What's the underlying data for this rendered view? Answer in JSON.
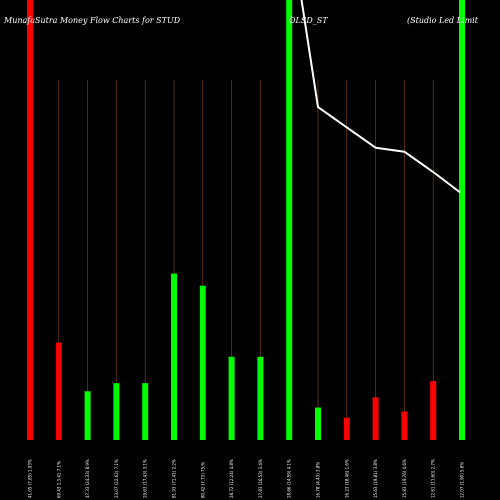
{
  "chart_data": {
    "type": "bar",
    "title_left": "MunafaSutra  Money Flow  Charts for STUD",
    "title_mid": "OLSD_ST",
    "title_right": "(Studio  Led Limit",
    "colors": {
      "up": "#00ff00",
      "down": "#ff0000",
      "background": "#000000",
      "line": "#ffffff",
      "guide": "#8a4a10"
    },
    "ylim": [
      0,
      100
    ],
    "bars": [
      {
        "label": "41.05 (7.85) 1.93%",
        "value": 100,
        "color": "down"
      },
      {
        "label": "69.43 1.3.41.7.1%",
        "value": 24,
        "color": "down"
      },
      {
        "label": "47.33 (24.33) 8.9%",
        "value": 12,
        "color": "up"
      },
      {
        "label": "23.07 (22.62) 7.1%",
        "value": 14,
        "color": "up"
      },
      {
        "label": "29.63 (17.43) 3.1%",
        "value": 14,
        "color": "up"
      },
      {
        "label": "81.93 (71.41) 2.2%",
        "value": 41,
        "color": "up"
      },
      {
        "label": "80.42 (7.73) 75.%",
        "value": 38,
        "color": "up"
      },
      {
        "label": "28.72 (12.24) 4.8%",
        "value": 20.5,
        "color": "up"
      },
      {
        "label": "27.83 (16.53) 3.4%",
        "value": 20.5,
        "color": "up"
      },
      {
        "label": "28.66 (14.59) 4.1%",
        "value": 100,
        "color": "up"
      },
      {
        "label": "16.78 (4.43) 3.8%",
        "value": 8,
        "color": "up"
      },
      {
        "label": "16.23 (18.46) 1.6%",
        "value": 5.5,
        "color": "down"
      },
      {
        "label": "15.63 (19.81) 3.8%",
        "value": 10.5,
        "color": "down"
      },
      {
        "label": "15.83 (19.76) 4.6%",
        "value": 7,
        "color": "down"
      },
      {
        "label": "12.61 (11.60) 2.7%",
        "value": 14.5,
        "color": "down"
      },
      {
        "label": "12.07 (1.90) 5.6%",
        "value": 100,
        "color": "up"
      }
    ],
    "line": [
      110,
      100,
      100,
      100,
      100,
      100,
      100,
      100,
      100,
      100,
      82,
      77,
      72,
      71,
      66,
      61
    ]
  }
}
